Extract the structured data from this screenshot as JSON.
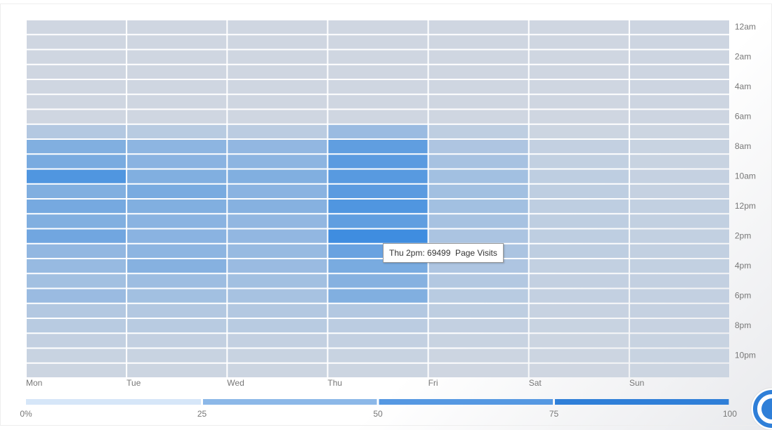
{
  "chart_data": {
    "type": "heatmap",
    "categories": [
      "Mon",
      "Tue",
      "Wed",
      "Thu",
      "Fri",
      "Sat",
      "Sun"
    ],
    "y_categories": [
      "12am",
      null,
      "2am",
      null,
      "4am",
      null,
      "6am",
      null,
      "8am",
      null,
      "10am",
      null,
      "12pm",
      null,
      "2pm",
      null,
      "4pm",
      null,
      "6pm",
      null,
      "8pm",
      null,
      "10pm",
      null
    ],
    "values": [
      [
        8,
        8,
        8,
        8,
        8,
        8,
        8,
        25,
        55,
        60,
        85,
        55,
        62,
        55,
        65,
        45,
        42,
        35,
        40,
        25,
        22,
        15,
        12,
        10
      ],
      [
        8,
        8,
        8,
        8,
        8,
        8,
        8,
        22,
        48,
        50,
        55,
        60,
        55,
        50,
        50,
        48,
        52,
        38,
        35,
        25,
        22,
        15,
        12,
        10
      ],
      [
        8,
        8,
        8,
        8,
        8,
        8,
        8,
        20,
        45,
        48,
        55,
        50,
        52,
        45,
        45,
        42,
        40,
        35,
        32,
        25,
        22,
        15,
        12,
        10
      ],
      [
        8,
        8,
        8,
        8,
        8,
        8,
        8,
        40,
        75,
        78,
        80,
        78,
        85,
        75,
        95,
        70,
        60,
        52,
        55,
        25,
        20,
        15,
        12,
        10
      ],
      [
        8,
        8,
        8,
        8,
        8,
        8,
        8,
        18,
        28,
        32,
        35,
        35,
        35,
        32,
        30,
        30,
        28,
        25,
        22,
        18,
        15,
        12,
        10,
        8
      ],
      [
        8,
        8,
        8,
        8,
        8,
        8,
        8,
        10,
        15,
        16,
        18,
        18,
        18,
        18,
        18,
        18,
        16,
        15,
        15,
        13,
        12,
        10,
        10,
        8
      ],
      [
        9,
        9,
        9,
        9,
        9,
        9,
        9,
        10,
        12,
        12,
        14,
        14,
        16,
        16,
        16,
        16,
        16,
        15,
        15,
        14,
        13,
        12,
        12,
        10
      ]
    ],
    "colors": [
      "#dcdde1",
      "#3789e0"
    ],
    "colorbar": {
      "ticks": [
        {
          "value": 0,
          "label": "0%"
        },
        25,
        50,
        75,
        100
      ],
      "colors": [
        "#d6e6f8",
        "#8cb8e8",
        "#5598e2",
        "#2f7fd8"
      ]
    },
    "tooltip": "Thu 2pm: 69499  Page Visits"
  }
}
